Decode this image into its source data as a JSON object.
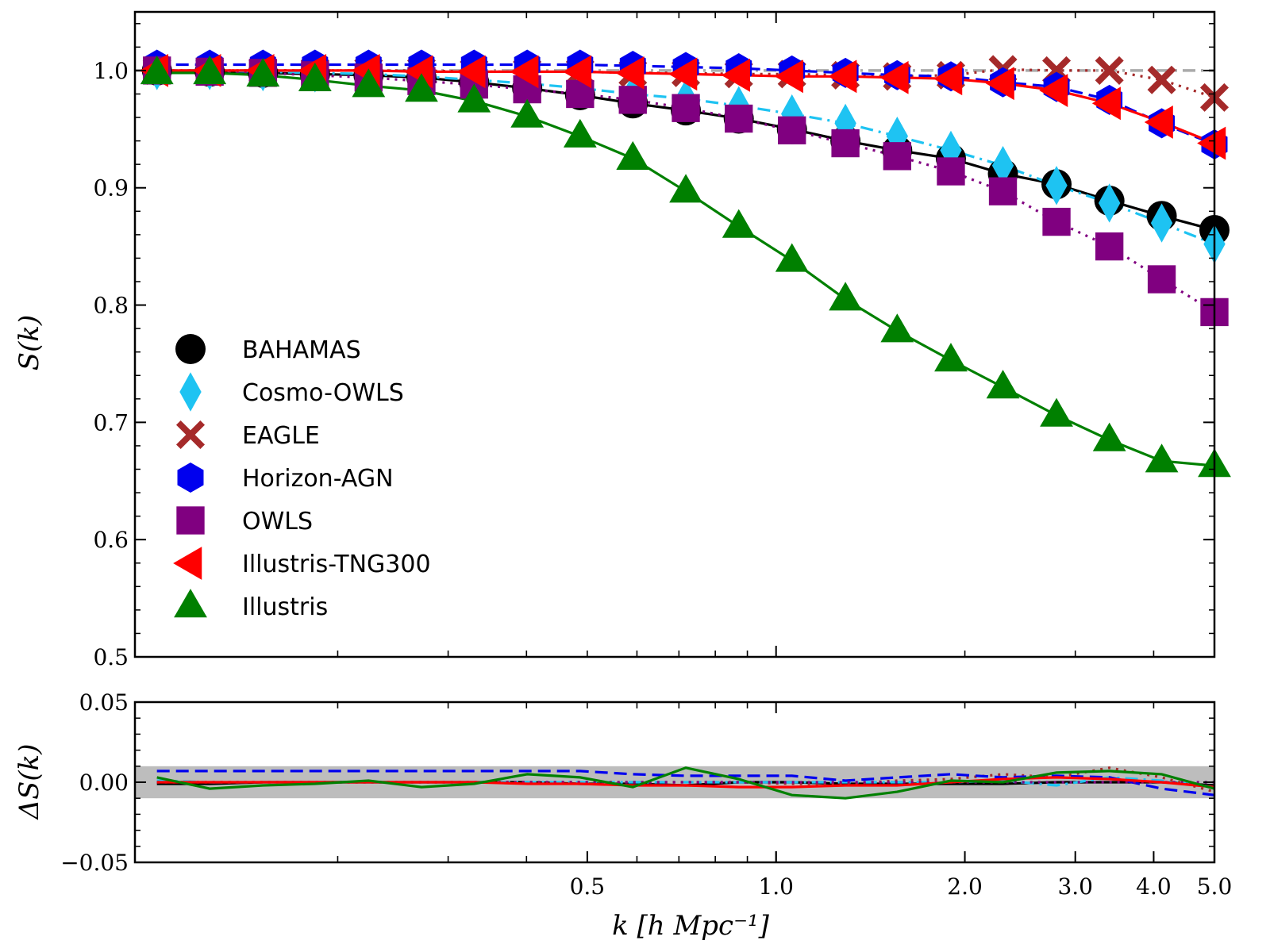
{
  "chart_data": [
    {
      "type": "line",
      "panel": "main",
      "xscale": "log",
      "xlim": [
        0.095,
        5.0
      ],
      "ylim": [
        0.5,
        1.05
      ],
      "ylabel": "S(k)",
      "reference_line": 1.0,
      "yticks": [
        {
          "v": 0.5,
          "t": "0.5"
        },
        {
          "v": 0.6,
          "t": "0.6"
        },
        {
          "v": 0.7,
          "t": "0.7"
        },
        {
          "v": 0.8,
          "t": "0.8"
        },
        {
          "v": 0.9,
          "t": "0.9"
        },
        {
          "v": 1.0,
          "t": "1.0"
        }
      ],
      "legend_position": "left-middle",
      "x": [
        0.103,
        0.125,
        0.152,
        0.184,
        0.224,
        0.272,
        0.33,
        0.401,
        0.487,
        0.591,
        0.718,
        0.872,
        1.06,
        1.29,
        1.56,
        1.9,
        2.3,
        2.8,
        3.4,
        4.12,
        5.0
      ],
      "series": [
        {
          "name": "BAHAMAS",
          "marker": "circle",
          "color": "#000000",
          "linestyle": "solid",
          "values": [
            1.0,
            0.999,
            0.998,
            0.997,
            0.996,
            0.994,
            0.99,
            0.985,
            0.979,
            0.972,
            0.966,
            0.959,
            0.95,
            0.94,
            0.932,
            0.925,
            0.912,
            0.903,
            0.889,
            0.876,
            0.864
          ]
        },
        {
          "name": "Cosmo-OWLS",
          "marker": "diamond",
          "color": "#1ec3f2",
          "linestyle": "dashdot",
          "values": [
            1.0,
            1.0,
            0.999,
            0.998,
            0.997,
            0.995,
            0.992,
            0.989,
            0.985,
            0.98,
            0.976,
            0.97,
            0.963,
            0.955,
            0.944,
            0.932,
            0.919,
            0.902,
            0.887,
            0.87,
            0.852
          ]
        },
        {
          "name": "EAGLE",
          "marker": "x",
          "color": "#a52a2a",
          "linestyle": "dotted",
          "values": [
            1.0,
            1.0,
            1.0,
            1.0,
            1.0,
            1.0,
            0.999,
            0.999,
            0.999,
            0.998,
            0.998,
            0.997,
            0.997,
            0.996,
            0.995,
            0.996,
            1.001,
            1.0,
            1.0,
            0.992,
            0.977
          ]
        },
        {
          "name": "Horizon-AGN",
          "marker": "hexagon",
          "color": "#0000ee",
          "linestyle": "dashed",
          "values": [
            1.005,
            1.005,
            1.005,
            1.005,
            1.005,
            1.005,
            1.005,
            1.005,
            1.005,
            1.004,
            1.003,
            1.002,
            1.0,
            0.998,
            0.996,
            0.995,
            0.99,
            0.986,
            0.975,
            0.955,
            0.937
          ]
        },
        {
          "name": "OWLS",
          "marker": "square",
          "color": "#800080",
          "linestyle": "dotted",
          "values": [
            1.0,
            0.999,
            0.998,
            0.996,
            0.994,
            0.991,
            0.988,
            0.984,
            0.98,
            0.975,
            0.968,
            0.959,
            0.949,
            0.938,
            0.927,
            0.914,
            0.897,
            0.871,
            0.85,
            0.822,
            0.794
          ]
        },
        {
          "name": "Illustris-TNG300",
          "marker": "triangle-left",
          "color": "#ff0000",
          "linestyle": "solid",
          "values": [
            1.0,
            1.0,
            1.0,
            1.0,
            1.0,
            0.999,
            0.999,
            0.999,
            0.999,
            0.998,
            0.997,
            0.996,
            0.995,
            0.995,
            0.994,
            0.993,
            0.989,
            0.983,
            0.972,
            0.956,
            0.938
          ]
        },
        {
          "name": "Illustris",
          "marker": "triangle-up",
          "color": "#008000",
          "linestyle": "solid",
          "values": [
            0.998,
            0.998,
            0.996,
            0.992,
            0.987,
            0.983,
            0.974,
            0.961,
            0.944,
            0.925,
            0.897,
            0.867,
            0.838,
            0.805,
            0.778,
            0.753,
            0.73,
            0.706,
            0.685,
            0.667,
            0.663
          ]
        }
      ]
    },
    {
      "type": "line",
      "panel": "residual",
      "xscale": "log",
      "xlim": [
        0.095,
        5.0
      ],
      "ylim": [
        -0.05,
        0.05
      ],
      "ylabel": "ΔS(k)",
      "xlabel": "k [h Mpc⁻¹]",
      "band": [
        -0.01,
        0.01
      ],
      "band_color": "#bdbdbd",
      "yticks": [
        {
          "v": -0.05,
          "t": "−0.05"
        },
        {
          "v": 0.0,
          "t": "0.00"
        },
        {
          "v": 0.05,
          "t": "0.05"
        }
      ],
      "xticks": [
        {
          "v": 0.5,
          "t": "0.5"
        },
        {
          "v": 1.0,
          "t": "1.0"
        },
        {
          "v": 2.0,
          "t": "2.0"
        },
        {
          "v": 3.0,
          "t": "3.0"
        },
        {
          "v": 4.0,
          "t": "4.0"
        },
        {
          "v": 5.0,
          "t": "5.0"
        }
      ],
      "x": [
        0.103,
        0.125,
        0.152,
        0.184,
        0.224,
        0.272,
        0.33,
        0.401,
        0.487,
        0.591,
        0.718,
        0.872,
        1.06,
        1.29,
        1.56,
        1.9,
        2.3,
        2.8,
        3.4,
        4.12,
        5.0
      ],
      "series": [
        {
          "color": "#000000",
          "linestyle": "solid",
          "values": [
            -0.001,
            -0.001,
            0.0,
            0.0,
            0.0,
            0.0,
            0.0,
            0.0,
            -0.001,
            -0.001,
            -0.002,
            0.0,
            0.0,
            -0.001,
            -0.001,
            -0.001,
            -0.001,
            0.0,
            0.0,
            0.0,
            -0.002
          ]
        },
        {
          "color": "#1ec3f2",
          "linestyle": "dashdot",
          "values": [
            0.001,
            0.0,
            0.0,
            0.0,
            0.0,
            0.0,
            0.0,
            0.0,
            0.0,
            0.0,
            0.0,
            0.0,
            0.0,
            0.0,
            0.0,
            0.0,
            0.001,
            -0.002,
            0.003,
            0.001,
            -0.003
          ]
        },
        {
          "color": "#a52a2a",
          "linestyle": "dotted",
          "values": [
            0.0,
            0.0,
            0.0,
            0.0,
            0.0,
            0.0,
            0.0,
            0.0,
            0.0,
            0.0,
            0.0,
            0.0,
            -0.001,
            -0.001,
            0.001,
            0.002,
            0.005,
            0.003,
            0.009,
            0.003,
            -0.006
          ]
        },
        {
          "color": "#0000ee",
          "linestyle": "dashed",
          "values": [
            0.007,
            0.007,
            0.007,
            0.007,
            0.007,
            0.007,
            0.007,
            0.007,
            0.007,
            0.005,
            0.004,
            0.004,
            0.004,
            0.001,
            0.003,
            0.005,
            0.003,
            0.004,
            0.003,
            -0.004,
            -0.008
          ]
        },
        {
          "color": "#800080",
          "linestyle": "dotted",
          "values": [
            0.0,
            0.0,
            0.0,
            0.0,
            0.0,
            0.0,
            0.0,
            0.0,
            0.0,
            0.0,
            0.0,
            0.0,
            0.0,
            0.0,
            0.0,
            0.0,
            0.0,
            0.0,
            0.0,
            0.0,
            0.0
          ]
        },
        {
          "color": "#ff0000",
          "linestyle": "solid",
          "values": [
            0.0,
            0.0,
            0.0,
            0.0,
            0.0,
            0.0,
            0.0,
            -0.001,
            -0.001,
            -0.002,
            -0.002,
            -0.003,
            -0.003,
            -0.002,
            -0.002,
            0.0,
            0.002,
            0.003,
            0.002,
            0.0,
            -0.003
          ]
        },
        {
          "color": "#008000",
          "linestyle": "solid",
          "values": [
            0.003,
            -0.004,
            -0.002,
            -0.001,
            0.001,
            -0.003,
            -0.001,
            0.005,
            0.003,
            -0.003,
            0.009,
            0.002,
            -0.008,
            -0.01,
            -0.006,
            0.001,
            0.0,
            0.006,
            0.007,
            0.005,
            -0.004
          ]
        }
      ]
    }
  ]
}
